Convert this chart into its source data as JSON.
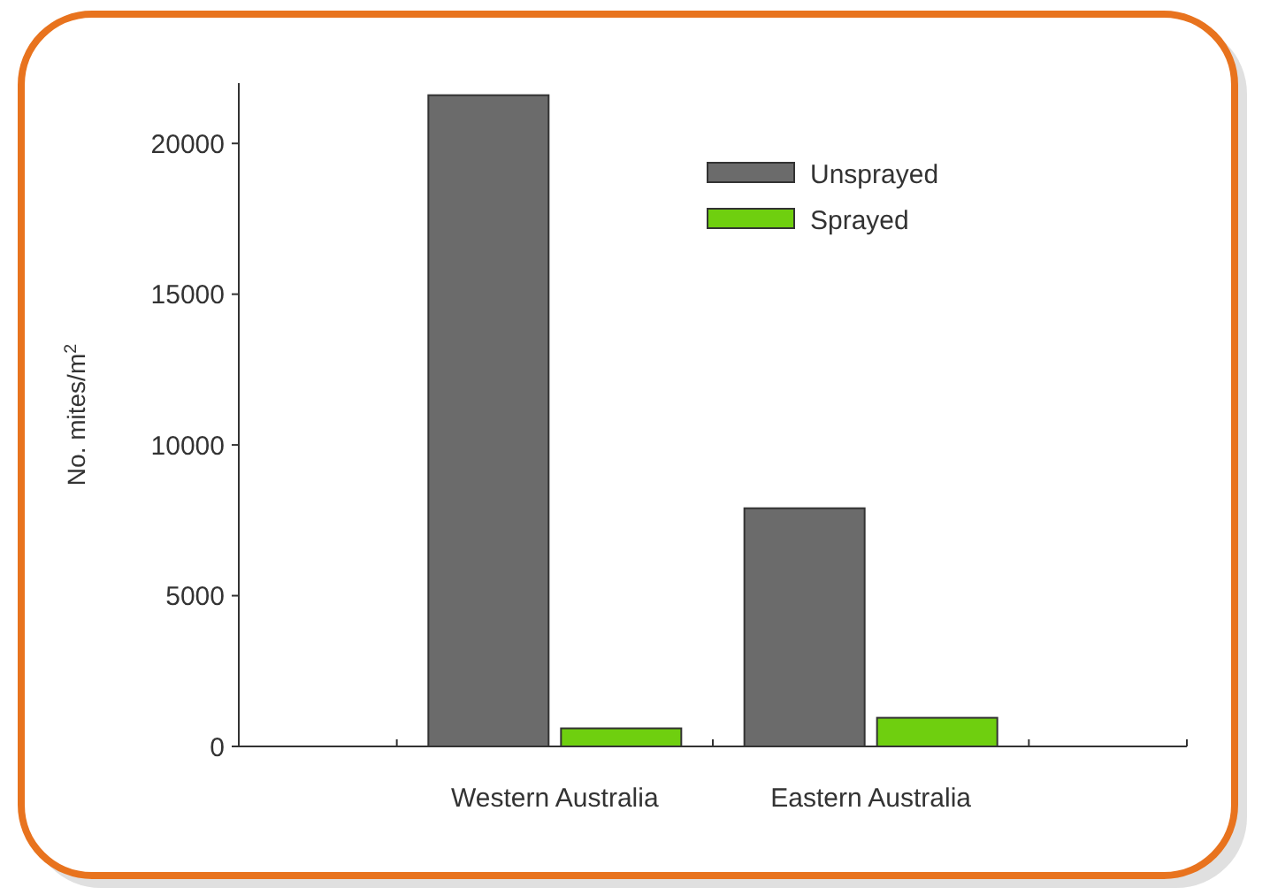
{
  "chart_data": {
    "type": "bar",
    "ylabel": "No. mites/m$^{2}$",
    "categories": [
      "Western Australia",
      "Eastern Australia"
    ],
    "series": [
      {
        "name": "Unsprayed",
        "color": "#6b6b6b",
        "values": [
          21600,
          7900
        ]
      },
      {
        "name": "Sprayed",
        "color": "#6fcf0f",
        "values": [
          600,
          950
        ]
      }
    ],
    "ylim": [
      0,
      22000
    ],
    "yticks": [
      0,
      5000,
      10000,
      15000,
      20000
    ],
    "grid": false,
    "legend": "top right"
  }
}
